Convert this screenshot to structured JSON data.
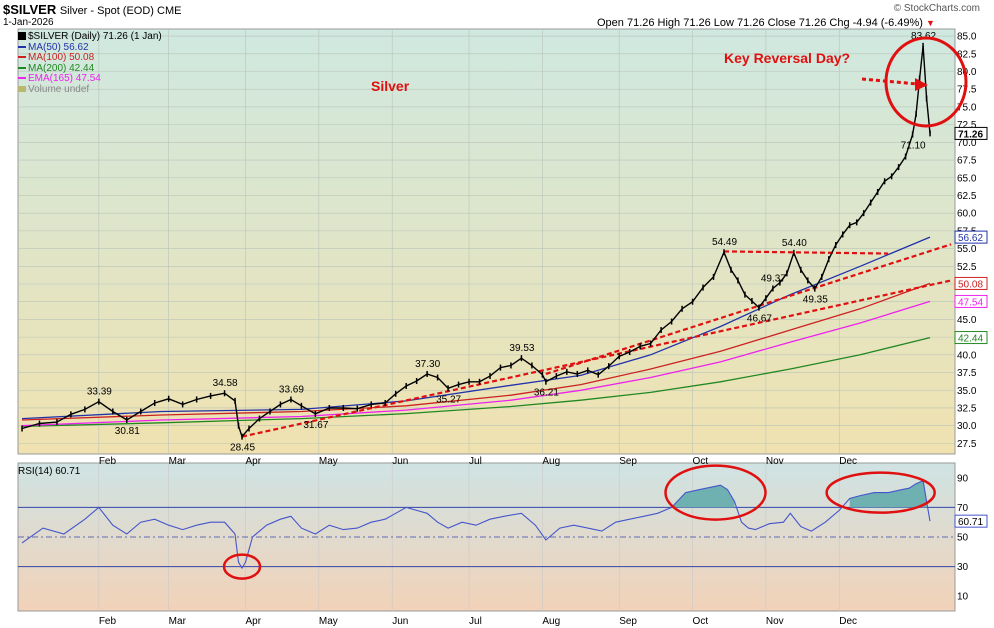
{
  "header": {
    "symbol": "$SILVER",
    "description": "Silver - Spot (EOD) CME",
    "date": "1-Jan-2026",
    "source": "© StockCharts.com",
    "ohlc": "Open 71.26 High 71.26 Low 71.26 Close 71.26 Chg -4.94 (-6.49%)",
    "chg_marker": "▼"
  },
  "legend": {
    "title": "$SILVER (Daily) 71.26 (1 Jan)",
    "items": [
      {
        "label": "MA(50) 56.62",
        "color": "#2233aa"
      },
      {
        "label": "MA(100) 50.08",
        "color": "#cc2222"
      },
      {
        "label": "MA(200) 42.44",
        "color": "#228822"
      },
      {
        "label": "EMA(165) 47.54",
        "color": "#ee22ee"
      },
      {
        "label": "Volume undef",
        "color": "#888888"
      }
    ]
  },
  "annotations": {
    "silver_label": "Silver",
    "key_reversal": "Key Reversal Day?"
  },
  "colors": {
    "price_bg_top": "#cfe8e0",
    "price_bg_bottom": "#f0e2b0",
    "rsi_bg_top": "#cfe3e3",
    "rsi_bg_bottom": "#f2d2b8",
    "red": "#e01010",
    "ma50": "#2233aa",
    "ma100": "#cc2222",
    "ma200": "#228822",
    "ema165": "#ee22ee",
    "rsi_line": "#4455cc",
    "rsi_fill": "#6fb0b0"
  },
  "chart_data": {
    "type": "line",
    "title": "$SILVER Silver - Spot (EOD) CME",
    "price_panel": {
      "ylim": [
        26.0,
        86.0
      ],
      "yticks": [
        27.5,
        30.0,
        32.5,
        35.0,
        37.5,
        40.0,
        42.5,
        45.0,
        47.5,
        50.0,
        52.5,
        55.0,
        57.5,
        60.0,
        62.5,
        65.0,
        67.5,
        70.0,
        72.5,
        75.0,
        77.5,
        80.0,
        82.5,
        85.0
      ],
      "ytick_labels": [
        "27.5",
        "30.0",
        "32.5",
        "35.0",
        "37.5",
        "40.0",
        "42.5",
        "45.0",
        "47.5",
        "50.0",
        "52.5",
        "55.0",
        "57.5",
        "60.0",
        "62.5",
        "65.0",
        "67.5",
        "70.0",
        "72.5",
        "75.0",
        "77.5",
        "80.0",
        "82.5",
        "85.0"
      ],
      "month_labels": [
        "Feb",
        "Mar",
        "Apr",
        "May",
        "Jun",
        "Jul",
        "Aug",
        "Sep",
        "Oct",
        "Nov",
        "Dec"
      ],
      "month_starts": [
        22,
        42,
        64,
        85,
        106,
        128,
        149,
        171,
        192,
        213,
        234
      ],
      "price_series": [
        [
          0,
          29.6
        ],
        [
          5,
          30.3
        ],
        [
          10,
          30.5
        ],
        [
          14,
          31.6
        ],
        [
          18,
          32.3
        ],
        [
          22,
          33.39
        ],
        [
          26,
          32.0
        ],
        [
          30,
          30.81
        ],
        [
          34,
          32.0
        ],
        [
          38,
          33.2
        ],
        [
          42,
          33.8
        ],
        [
          46,
          33.0
        ],
        [
          50,
          33.7
        ],
        [
          54,
          34.2
        ],
        [
          58,
          34.58
        ],
        [
          61,
          33.5
        ],
        [
          62,
          30.0
        ],
        [
          63,
          28.45
        ],
        [
          65,
          29.6
        ],
        [
          68,
          31.0
        ],
        [
          71,
          32.0
        ],
        [
          74,
          33.0
        ],
        [
          77,
          33.69
        ],
        [
          80,
          32.8
        ],
        [
          84,
          31.67
        ],
        [
          88,
          32.5
        ],
        [
          92,
          32.5
        ],
        [
          96,
          32.4
        ],
        [
          100,
          33.0
        ],
        [
          104,
          33.2
        ],
        [
          107,
          34.5
        ],
        [
          110,
          35.6
        ],
        [
          113,
          36.3
        ],
        [
          116,
          37.3
        ],
        [
          119,
          36.8
        ],
        [
          122,
          35.27
        ],
        [
          125,
          35.8
        ],
        [
          128,
          36.2
        ],
        [
          131,
          36.2
        ],
        [
          134,
          37.0
        ],
        [
          137,
          38.2
        ],
        [
          140,
          38.5
        ],
        [
          143,
          39.53
        ],
        [
          146,
          38.5
        ],
        [
          149,
          37.2
        ],
        [
          150,
          36.21
        ],
        [
          153,
          37.0
        ],
        [
          156,
          37.6
        ],
        [
          159,
          37.3
        ],
        [
          162,
          37.8
        ],
        [
          165,
          37.2
        ],
        [
          168,
          38.4
        ],
        [
          171,
          39.8
        ],
        [
          174,
          40.4
        ],
        [
          177,
          41.2
        ],
        [
          180,
          41.6
        ],
        [
          183,
          43.5
        ],
        [
          186,
          44.7
        ],
        [
          189,
          46.5
        ],
        [
          192,
          47.5
        ],
        [
          195,
          49.5
        ],
        [
          198,
          51.0
        ],
        [
          201,
          54.49
        ],
        [
          203,
          52.0
        ],
        [
          205,
          50.5
        ],
        [
          207,
          48.5
        ],
        [
          209,
          47.6
        ],
        [
          211,
          46.67
        ],
        [
          213,
          48.0
        ],
        [
          215,
          49.37
        ],
        [
          217,
          50.2
        ],
        [
          219,
          51.5
        ],
        [
          221,
          54.4
        ],
        [
          223,
          52.0
        ],
        [
          225,
          50.5
        ],
        [
          227,
          49.35
        ],
        [
          229,
          51.0
        ],
        [
          231,
          53.5
        ],
        [
          233,
          55.5
        ],
        [
          235,
          57.0
        ],
        [
          237,
          58.3
        ],
        [
          239,
          58.7
        ],
        [
          241,
          60.0
        ],
        [
          243,
          61.5
        ],
        [
          245,
          63.0
        ],
        [
          247,
          64.5
        ],
        [
          249,
          65.2
        ],
        [
          251,
          66.5
        ],
        [
          253,
          68.0
        ],
        [
          255,
          71.1
        ],
        [
          256,
          74.0
        ],
        [
          257,
          79.0
        ],
        [
          258,
          83.62
        ],
        [
          259,
          76.2
        ],
        [
          260,
          71.26
        ]
      ],
      "price_labels": [
        {
          "index": 22,
          "value": 33.39,
          "text": "33.39"
        },
        {
          "index": 30,
          "value": 30.81,
          "text": "30.81"
        },
        {
          "index": 58,
          "value": 34.58,
          "text": "34.58"
        },
        {
          "index": 63,
          "value": 28.45,
          "text": "28.45"
        },
        {
          "index": 77,
          "value": 33.69,
          "text": "33.69"
        },
        {
          "index": 84,
          "value": 31.67,
          "text": "31.67"
        },
        {
          "index": 116,
          "value": 37.3,
          "text": "37.30"
        },
        {
          "index": 122,
          "value": 35.27,
          "text": "35.27"
        },
        {
          "index": 143,
          "value": 39.53,
          "text": "39.53"
        },
        {
          "index": 150,
          "value": 36.21,
          "text": "36.21"
        },
        {
          "index": 201,
          "value": 54.49,
          "text": "54.49"
        },
        {
          "index": 211,
          "value": 46.67,
          "text": "46.67"
        },
        {
          "index": 215,
          "value": 49.37,
          "text": "49.37"
        },
        {
          "index": 221,
          "value": 54.4,
          "text": "54.40"
        },
        {
          "index": 227,
          "value": 49.35,
          "text": "49.35"
        },
        {
          "index": 255,
          "value": 71.1,
          "text": "71.10"
        },
        {
          "index": 258,
          "value": 83.62,
          "text": "83.62"
        }
      ],
      "moving_averages": [
        {
          "name": "MA(50)",
          "value": 56.62,
          "color": "#2233aa",
          "points": [
            [
              0,
              31.0
            ],
            [
              40,
              32.0
            ],
            [
              80,
              32.3
            ],
            [
              110,
              33.5
            ],
            [
              140,
              35.7
            ],
            [
              160,
              37.1
            ],
            [
              180,
              40.0
            ],
            [
              200,
              44.0
            ],
            [
              220,
              48.5
            ],
            [
              240,
              52.5
            ],
            [
              260,
              56.62
            ]
          ]
        },
        {
          "name": "MA(100)",
          "value": 50.08,
          "color": "#cc2222",
          "points": [
            [
              0,
              30.8
            ],
            [
              40,
              31.5
            ],
            [
              80,
              32.0
            ],
            [
              110,
              32.8
            ],
            [
              140,
              34.3
            ],
            [
              160,
              35.8
            ],
            [
              180,
              38.0
            ],
            [
              200,
              40.5
            ],
            [
              220,
              43.5
            ],
            [
              240,
              46.5
            ],
            [
              260,
              50.08
            ]
          ]
        },
        {
          "name": "MA(200)",
          "value": 42.44,
          "color": "#228822",
          "points": [
            [
              0,
              29.9
            ],
            [
              40,
              30.4
            ],
            [
              80,
              31.0
            ],
            [
              110,
              31.7
            ],
            [
              140,
              32.7
            ],
            [
              160,
              33.6
            ],
            [
              180,
              34.7
            ],
            [
              200,
              36.2
            ],
            [
              220,
              38.0
            ],
            [
              240,
              40.0
            ],
            [
              260,
              42.44
            ]
          ]
        },
        {
          "name": "EMA(165)",
          "value": 47.54,
          "color": "#ee22ee",
          "points": [
            [
              0,
              30.0
            ],
            [
              40,
              30.8
            ],
            [
              80,
              31.3
            ],
            [
              110,
              32.2
            ],
            [
              140,
              33.6
            ],
            [
              160,
              35.0
            ],
            [
              180,
              36.8
            ],
            [
              200,
              39.0
            ],
            [
              220,
              41.8
            ],
            [
              240,
              44.5
            ],
            [
              260,
              47.54
            ]
          ]
        }
      ],
      "trendlines": [
        {
          "from": [
            63,
            28.45
          ],
          "to": [
            266,
            50.5
          ]
        },
        {
          "from": [
            150,
            37.3
          ],
          "to": [
            266,
            55.6
          ]
        },
        {
          "from": [
            201,
            54.6
          ],
          "to": [
            248,
            54.3
          ]
        }
      ],
      "value_tags": [
        {
          "value": 71.26,
          "text": "71.26",
          "color": "#000000",
          "bold": true
        },
        {
          "value": 56.62,
          "text": "56.62",
          "color": "#2233aa"
        },
        {
          "value": 50.08,
          "text": "50.08",
          "color": "#cc2222"
        },
        {
          "value": 47.54,
          "text": "47.54",
          "color": "#ee22ee"
        },
        {
          "value": 42.44,
          "text": "42.44",
          "color": "#228822"
        }
      ]
    },
    "rsi_panel": {
      "title": "RSI(14) 60.71",
      "ylim": [
        0,
        100
      ],
      "yticks": [
        10,
        30,
        50,
        70,
        90
      ],
      "overbought": 70,
      "oversold": 30,
      "midline": 50,
      "last_value": 60.71,
      "series": [
        [
          0,
          46
        ],
        [
          6,
          56
        ],
        [
          12,
          52
        ],
        [
          18,
          62
        ],
        [
          22,
          70
        ],
        [
          26,
          58
        ],
        [
          30,
          52
        ],
        [
          34,
          60
        ],
        [
          38,
          62
        ],
        [
          42,
          58
        ],
        [
          46,
          55
        ],
        [
          50,
          58
        ],
        [
          54,
          60
        ],
        [
          58,
          60
        ],
        [
          61,
          52
        ],
        [
          62,
          33
        ],
        [
          63,
          29
        ],
        [
          64,
          33
        ],
        [
          66,
          50
        ],
        [
          70,
          58
        ],
        [
          74,
          62
        ],
        [
          77,
          64
        ],
        [
          80,
          56
        ],
        [
          84,
          52
        ],
        [
          88,
          58
        ],
        [
          92,
          55
        ],
        [
          96,
          56
        ],
        [
          100,
          60
        ],
        [
          104,
          62
        ],
        [
          107,
          66
        ],
        [
          110,
          70
        ],
        [
          113,
          68
        ],
        [
          116,
          66
        ],
        [
          119,
          60
        ],
        [
          122,
          56
        ],
        [
          126,
          60
        ],
        [
          130,
          58
        ],
        [
          134,
          62
        ],
        [
          138,
          64
        ],
        [
          143,
          66
        ],
        [
          147,
          58
        ],
        [
          150,
          48
        ],
        [
          154,
          56
        ],
        [
          158,
          58
        ],
        [
          162,
          56
        ],
        [
          166,
          54
        ],
        [
          170,
          60
        ],
        [
          174,
          62
        ],
        [
          178,
          64
        ],
        [
          182,
          66
        ],
        [
          186,
          70
        ],
        [
          190,
          80
        ],
        [
          194,
          82
        ],
        [
          198,
          84
        ],
        [
          200,
          85
        ],
        [
          202,
          82
        ],
        [
          204,
          74
        ],
        [
          206,
          60
        ],
        [
          208,
          56
        ],
        [
          210,
          55
        ],
        [
          214,
          59
        ],
        [
          218,
          60
        ],
        [
          220,
          66
        ],
        [
          223,
          57
        ],
        [
          226,
          54
        ],
        [
          230,
          60
        ],
        [
          234,
          68
        ],
        [
          237,
          76
        ],
        [
          240,
          78
        ],
        [
          244,
          80
        ],
        [
          248,
          80
        ],
        [
          252,
          82
        ],
        [
          254,
          83
        ],
        [
          256,
          86
        ],
        [
          258,
          88
        ],
        [
          259,
          74
        ],
        [
          260,
          60.71
        ]
      ],
      "circles": [
        {
          "cx": 63,
          "cy": 30
        },
        {
          "cx": 198,
          "cy": 80
        },
        {
          "cx": 245,
          "cy": 80
        }
      ]
    }
  }
}
